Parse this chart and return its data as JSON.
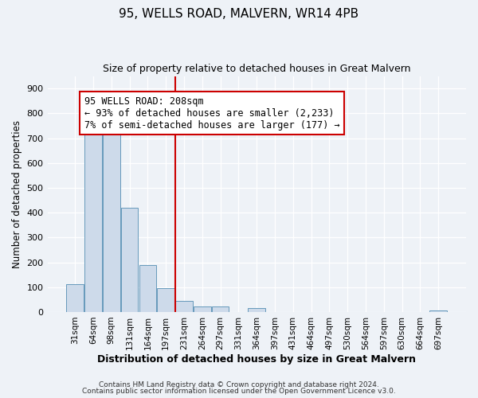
{
  "title": "95, WELLS ROAD, MALVERN, WR14 4PB",
  "subtitle": "Size of property relative to detached houses in Great Malvern",
  "xlabel": "Distribution of detached houses by size in Great Malvern",
  "ylabel": "Number of detached properties",
  "bin_labels": [
    "31sqm",
    "64sqm",
    "98sqm",
    "131sqm",
    "164sqm",
    "197sqm",
    "231sqm",
    "264sqm",
    "297sqm",
    "331sqm",
    "364sqm",
    "397sqm",
    "431sqm",
    "464sqm",
    "497sqm",
    "530sqm",
    "564sqm",
    "597sqm",
    "630sqm",
    "664sqm",
    "697sqm"
  ],
  "bar_heights": [
    113,
    750,
    750,
    420,
    190,
    95,
    45,
    22,
    22,
    0,
    15,
    0,
    0,
    0,
    0,
    0,
    0,
    0,
    0,
    0,
    7
  ],
  "bar_color": "#cddaea",
  "bar_edge_color": "#6699bb",
  "vline_x": 5.5,
  "vline_color": "#cc0000",
  "annotation_title": "95 WELLS ROAD: 208sqm",
  "annotation_line1": "← 93% of detached houses are smaller (2,233)",
  "annotation_line2": "7% of semi-detached houses are larger (177) →",
  "annotation_box_color": "#cc0000",
  "annotation_fontsize": 8.5,
  "ylim": [
    0,
    950
  ],
  "yticks": [
    0,
    100,
    200,
    300,
    400,
    500,
    600,
    700,
    800,
    900
  ],
  "footer1": "Contains HM Land Registry data © Crown copyright and database right 2024.",
  "footer2": "Contains public sector information licensed under the Open Government Licence v3.0.",
  "bg_color": "#eef2f7",
  "plot_bg_color": "#eef2f7",
  "title_fontsize": 11,
  "subtitle_fontsize": 9,
  "ylabel_fontsize": 8.5,
  "xlabel_fontsize": 9,
  "tick_fontsize": 8,
  "xtick_fontsize": 7.5,
  "footer_fontsize": 6.5
}
